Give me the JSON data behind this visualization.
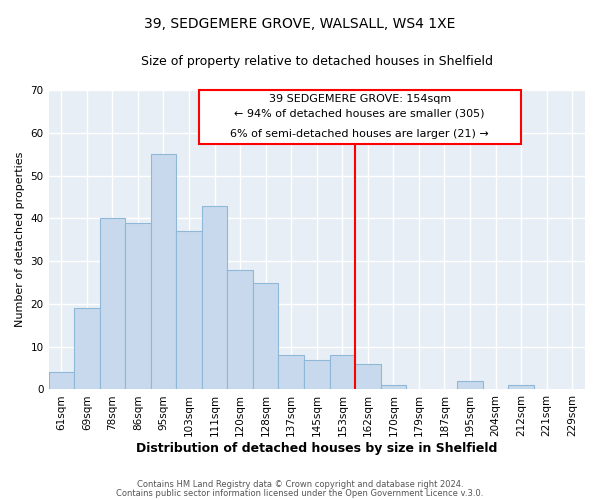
{
  "title": "39, SEDGEMERE GROVE, WALSALL, WS4 1XE",
  "subtitle": "Size of property relative to detached houses in Shelfield",
  "xlabel": "Distribution of detached houses by size in Shelfield",
  "ylabel": "Number of detached properties",
  "bar_labels": [
    "61sqm",
    "69sqm",
    "78sqm",
    "86sqm",
    "95sqm",
    "103sqm",
    "111sqm",
    "120sqm",
    "128sqm",
    "137sqm",
    "145sqm",
    "153sqm",
    "162sqm",
    "170sqm",
    "179sqm",
    "187sqm",
    "195sqm",
    "204sqm",
    "212sqm",
    "221sqm",
    "229sqm"
  ],
  "bar_values": [
    4,
    19,
    40,
    39,
    55,
    37,
    43,
    28,
    25,
    8,
    7,
    8,
    6,
    1,
    0,
    0,
    2,
    0,
    1,
    0,
    0
  ],
  "bar_color": "#c8d9ed",
  "bar_edge_color": "#8fb8d8",
  "vline_color": "red",
  "vline_index": 11,
  "ylim": [
    0,
    70
  ],
  "yticks": [
    0,
    10,
    20,
    30,
    40,
    50,
    60,
    70
  ],
  "annotation_title": "39 SEDGEMERE GROVE: 154sqm",
  "annotation_line1": "← 94% of detached houses are smaller (305)",
  "annotation_line2": "6% of semi-detached houses are larger (21) →",
  "footer1": "Contains HM Land Registry data © Crown copyright and database right 2024.",
  "footer2": "Contains public sector information licensed under the Open Government Licence v.3.0.",
  "bg_color": "#e8eef5",
  "title_fontsize": 10,
  "subtitle_fontsize": 9,
  "xlabel_fontsize": 9,
  "ylabel_fontsize": 8,
  "tick_fontsize": 7.5,
  "annot_title_fontsize": 8,
  "annot_body_fontsize": 8,
  "footer_fontsize": 6
}
